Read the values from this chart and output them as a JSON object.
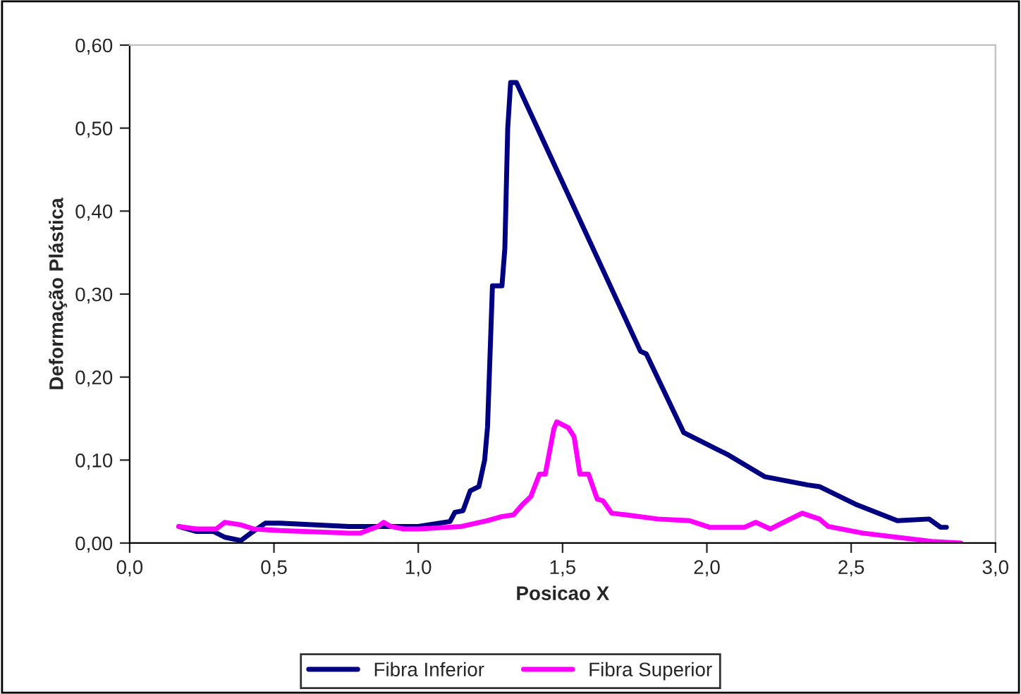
{
  "chart_data": {
    "type": "line",
    "xlabel": "Posicao X",
    "ylabel": "Deformação Plástica",
    "xlim": [
      0,
      3
    ],
    "ylim": [
      0,
      0.6
    ],
    "xticks": [
      {
        "value": 0,
        "label": "0,0"
      },
      {
        "value": 0.5,
        "label": "0,5"
      },
      {
        "value": 1,
        "label": "1,0"
      },
      {
        "value": 1.5,
        "label": "1,5"
      },
      {
        "value": 2,
        "label": "2,0"
      },
      {
        "value": 2.5,
        "label": "2,5"
      },
      {
        "value": 3,
        "label": "3,0"
      }
    ],
    "yticks": [
      {
        "value": 0,
        "label": "0,00"
      },
      {
        "value": 0.1,
        "label": "0,10"
      },
      {
        "value": 0.2,
        "label": "0,20"
      },
      {
        "value": 0.3,
        "label": "0,30"
      },
      {
        "value": 0.4,
        "label": "0,40"
      },
      {
        "value": 0.5,
        "label": "0,50"
      },
      {
        "value": 0.6,
        "label": "0,60"
      }
    ],
    "grid": false,
    "legend": "bottom",
    "marker": "none",
    "line_style": "solid",
    "series": [
      {
        "name": "Fibra Inferior",
        "color": "#000080",
        "x": [
          0.17,
          0.23,
          0.29,
          0.33,
          0.385,
          0.42,
          0.47,
          0.52,
          0.76,
          1.0,
          1.11,
          1.127,
          1.155,
          1.18,
          1.21,
          1.23,
          1.24,
          1.257,
          1.29,
          1.3,
          1.31,
          1.32,
          1.34,
          1.77,
          1.79,
          1.92,
          2.07,
          2.2,
          2.35,
          2.39,
          2.52,
          2.66,
          2.77,
          2.81,
          2.83
        ],
        "values": [
          0.02,
          0.014,
          0.014,
          0.007,
          0.003,
          0.012,
          0.024,
          0.024,
          0.02,
          0.02,
          0.026,
          0.037,
          0.039,
          0.063,
          0.068,
          0.1,
          0.14,
          0.31,
          0.31,
          0.355,
          0.5,
          0.555,
          0.555,
          0.231,
          0.228,
          0.133,
          0.107,
          0.08,
          0.07,
          0.068,
          0.046,
          0.027,
          0.029,
          0.019,
          0.019
        ]
      },
      {
        "name": "Fibra Superior",
        "color": "#ff00ff",
        "x": [
          0.17,
          0.23,
          0.3,
          0.33,
          0.385,
          0.43,
          0.52,
          0.76,
          0.8,
          0.86,
          0.88,
          0.905,
          0.95,
          1.0,
          1.15,
          1.24,
          1.29,
          1.33,
          1.36,
          1.39,
          1.42,
          1.44,
          1.47,
          1.48,
          1.52,
          1.54,
          1.56,
          1.59,
          1.62,
          1.64,
          1.67,
          1.72,
          1.83,
          1.94,
          2.01,
          2.13,
          2.17,
          2.22,
          2.33,
          2.39,
          2.42,
          2.54,
          2.78,
          2.88
        ],
        "values": [
          0.02,
          0.017,
          0.017,
          0.025,
          0.022,
          0.017,
          0.015,
          0.012,
          0.012,
          0.02,
          0.025,
          0.02,
          0.017,
          0.017,
          0.02,
          0.027,
          0.032,
          0.034,
          0.046,
          0.056,
          0.083,
          0.083,
          0.138,
          0.146,
          0.139,
          0.128,
          0.083,
          0.083,
          0.053,
          0.051,
          0.036,
          0.034,
          0.029,
          0.027,
          0.019,
          0.019,
          0.025,
          0.017,
          0.036,
          0.029,
          0.02,
          0.012,
          0.002,
          0.0
        ]
      }
    ]
  }
}
